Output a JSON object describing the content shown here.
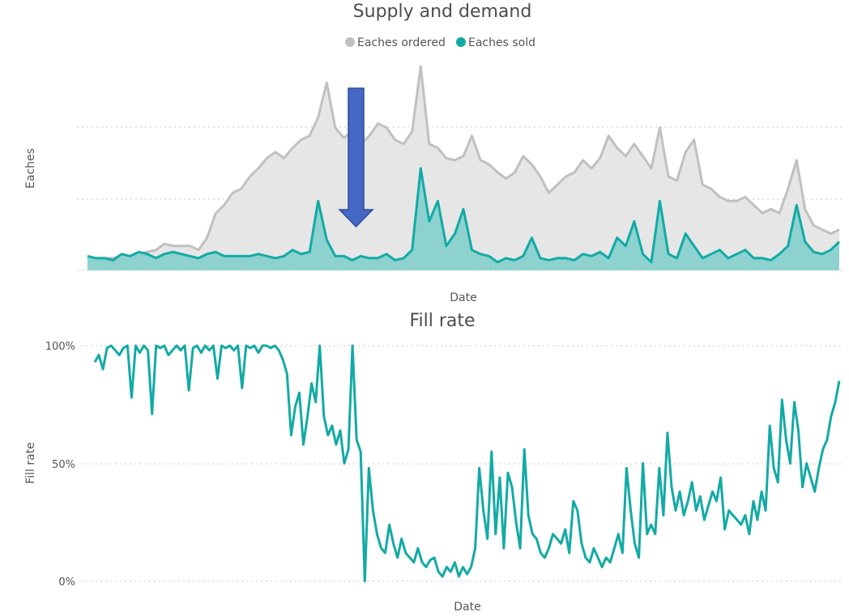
{
  "colors": {
    "ordered": "#c0c0c0",
    "ordered_fill": "#e6e6e6",
    "sold": "#13aaa5",
    "sold_fill": "#8dd2cf",
    "arrow": "#4468c4",
    "arrow_border": "#2f4d9a",
    "text": "#555555",
    "title": "#4d4d4d"
  },
  "charts": [
    {
      "title": "Supply and demand",
      "legend": [
        {
          "label": "Eaches ordered",
          "color": "#c0c0c0"
        },
        {
          "label": "Eaches sold",
          "color": "#13aaa5"
        }
      ],
      "xlabel": "Date",
      "ylabel": "Eaches"
    },
    {
      "title": "Fill rate",
      "xlabel": "Date",
      "ylabel": "Fill rate",
      "yticks": [
        "0%",
        "50%",
        "100%"
      ]
    }
  ],
  "chart_data": [
    {
      "type": "area",
      "title": "Supply and demand",
      "xlabel": "Date",
      "ylabel": "Eaches",
      "ylim": [
        0,
        100
      ],
      "grid": true,
      "legend_position": "top-center",
      "annotation": "down-arrow",
      "series": [
        {
          "name": "Eaches ordered",
          "values": [
            6,
            5,
            6,
            6,
            7,
            7,
            8,
            9,
            10,
            13,
            12,
            12,
            12,
            10,
            16,
            28,
            32,
            38,
            40,
            46,
            50,
            55,
            58,
            55,
            60,
            64,
            66,
            75,
            92,
            70,
            65,
            68,
            62,
            66,
            72,
            70,
            64,
            62,
            68,
            100,
            62,
            60,
            55,
            54,
            56,
            66,
            54,
            52,
            48,
            45,
            48,
            56,
            52,
            46,
            38,
            42,
            46,
            48,
            54,
            50,
            55,
            66,
            60,
            56,
            62,
            56,
            50,
            70,
            46,
            44,
            58,
            64,
            42,
            40,
            36,
            34,
            34,
            36,
            32,
            28,
            30,
            28,
            40,
            54,
            30,
            22,
            20,
            18,
            20
          ]
        },
        {
          "name": "Eaches sold",
          "values": [
            7,
            6,
            6,
            5,
            8,
            7,
            9,
            8,
            6,
            8,
            9,
            8,
            7,
            6,
            8,
            9,
            7,
            7,
            7,
            7,
            8,
            7,
            6,
            7,
            10,
            8,
            9,
            34,
            15,
            7,
            7,
            5,
            7,
            6,
            6,
            8,
            5,
            6,
            10,
            50,
            24,
            34,
            12,
            18,
            30,
            10,
            8,
            7,
            4,
            6,
            5,
            7,
            16,
            6,
            5,
            6,
            6,
            5,
            8,
            7,
            9,
            6,
            16,
            12,
            24,
            8,
            4,
            34,
            8,
            6,
            18,
            12,
            6,
            8,
            10,
            6,
            8,
            10,
            6,
            6,
            5,
            8,
            12,
            32,
            14,
            9,
            8,
            10,
            14
          ]
        }
      ]
    },
    {
      "type": "line",
      "title": "Fill rate",
      "xlabel": "Date",
      "ylabel": "Fill rate",
      "ylim": [
        0,
        100
      ],
      "yticks": [
        "0%",
        "50%",
        "100%"
      ],
      "grid": true,
      "series": [
        {
          "name": "Fill rate",
          "values": [
            93,
            96,
            90,
            99,
            100,
            98,
            96,
            99,
            100,
            78,
            100,
            97,
            100,
            98,
            71,
            100,
            99,
            100,
            96,
            98,
            100,
            98,
            100,
            81,
            99,
            100,
            97,
            100,
            98,
            100,
            86,
            100,
            99,
            100,
            98,
            100,
            82,
            100,
            99,
            100,
            97,
            100,
            100,
            99,
            100,
            98,
            94,
            88,
            62,
            74,
            80,
            58,
            70,
            84,
            76,
            100,
            70,
            62,
            66,
            58,
            64,
            50,
            56,
            100,
            60,
            55,
            0,
            48,
            30,
            20,
            14,
            12,
            24,
            16,
            10,
            18,
            12,
            10,
            8,
            14,
            8,
            6,
            9,
            10,
            4,
            2,
            6,
            4,
            8,
            2,
            6,
            3,
            6,
            14,
            48,
            30,
            18,
            55,
            20,
            44,
            14,
            46,
            40,
            25,
            14,
            56,
            28,
            20,
            18,
            12,
            10,
            14,
            20,
            18,
            16,
            22,
            12,
            34,
            30,
            16,
            10,
            8,
            14,
            10,
            6,
            10,
            8,
            14,
            20,
            12,
            48,
            30,
            16,
            10,
            50,
            20,
            24,
            20,
            48,
            28,
            63,
            40,
            30,
            38,
            28,
            34,
            42,
            30,
            36,
            26,
            32,
            38,
            34,
            44,
            22,
            30,
            28,
            26,
            24,
            28,
            20,
            34,
            26,
            38,
            30,
            66,
            48,
            42,
            77,
            60,
            50,
            76,
            64,
            40,
            50,
            44,
            38,
            48,
            56,
            60,
            70,
            76,
            85
          ]
        }
      ]
    }
  ]
}
